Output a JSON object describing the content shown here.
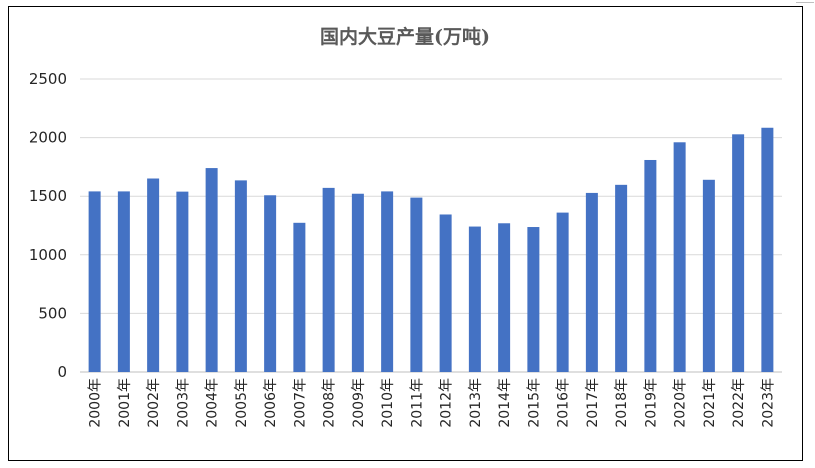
{
  "chart_data": {
    "type": "bar",
    "title": "国内大豆产量(万吨)",
    "categories": [
      "2000年",
      "2001年",
      "2002年",
      "2003年",
      "2004年",
      "2005年",
      "2006年",
      "2007年",
      "2008年",
      "2009年",
      "2010年",
      "2011年",
      "2012年",
      "2013年",
      "2014年",
      "2015年",
      "2016年",
      "2017年",
      "2018年",
      "2019年",
      "2020年",
      "2021年",
      "2022年",
      "2023年"
    ],
    "values": [
      1541,
      1541,
      1651,
      1539,
      1740,
      1635,
      1508,
      1273,
      1571,
      1521,
      1541,
      1488,
      1344,
      1241,
      1269,
      1237,
      1360,
      1528,
      1597,
      1809,
      1960,
      1640,
      2028,
      2084
    ],
    "ylim": [
      0,
      2500
    ],
    "yticks": [
      "0",
      "500",
      "1000",
      "1500",
      "2000",
      "2500"
    ],
    "ytick_values": [
      0,
      500,
      1000,
      1500,
      2000,
      2500
    ],
    "grid": true,
    "legend": "none",
    "bar_color": "#4472C4",
    "grid_color": "#D9D9D9",
    "xlabel": "",
    "ylabel": ""
  }
}
